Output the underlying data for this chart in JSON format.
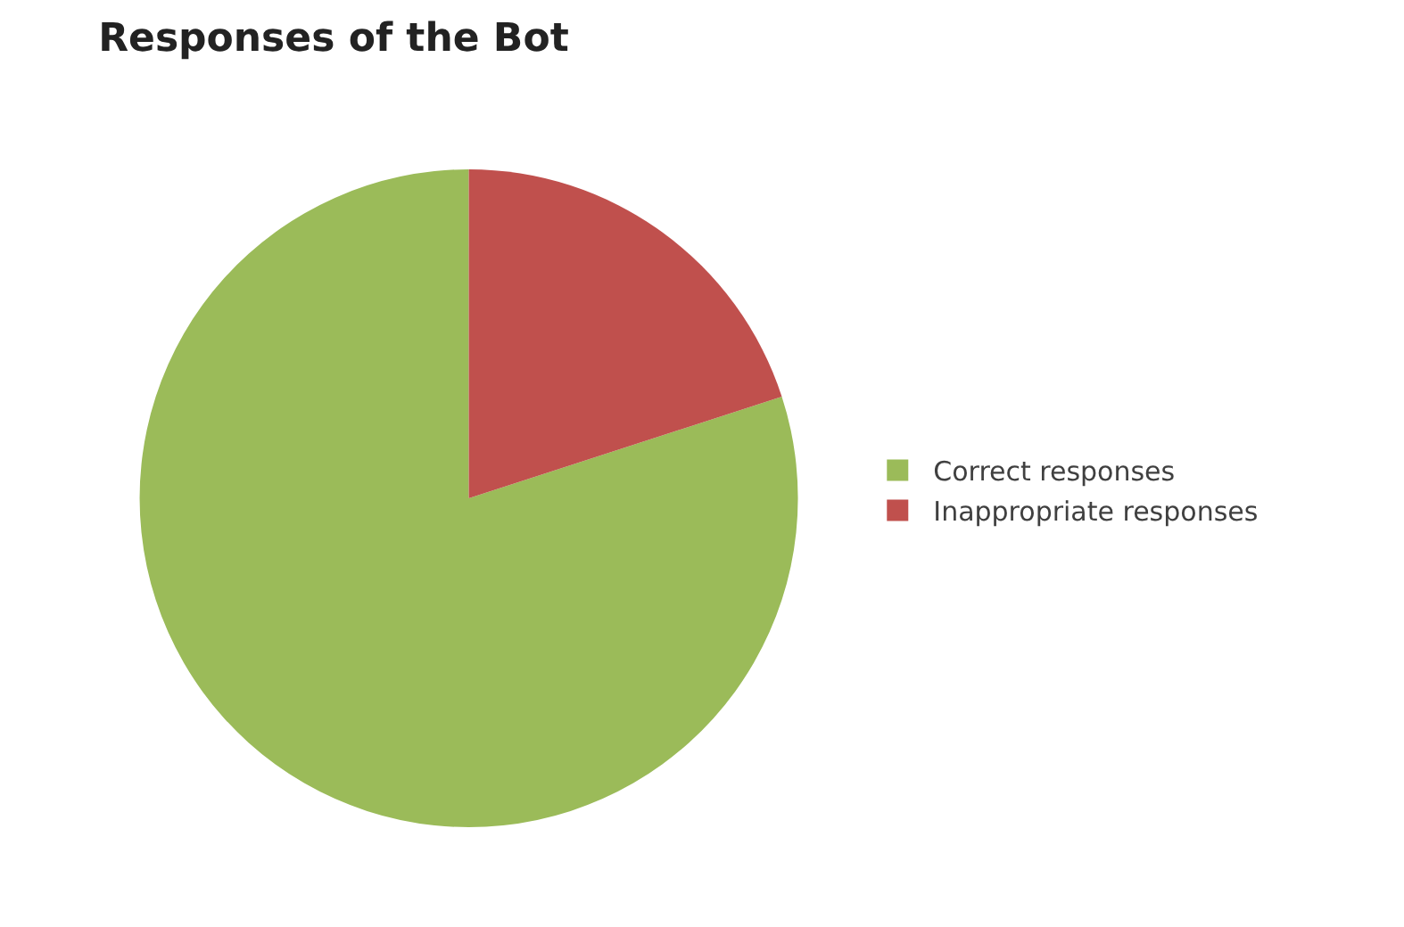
{
  "chart_data": {
    "type": "pie",
    "title": "Responses of the Bot",
    "categories": [
      "Correct responses",
      "Inappropriate responses"
    ],
    "values": [
      80,
      20
    ],
    "colors": [
      "#9bbb59",
      "#c0504d"
    ],
    "legend": "right"
  }
}
